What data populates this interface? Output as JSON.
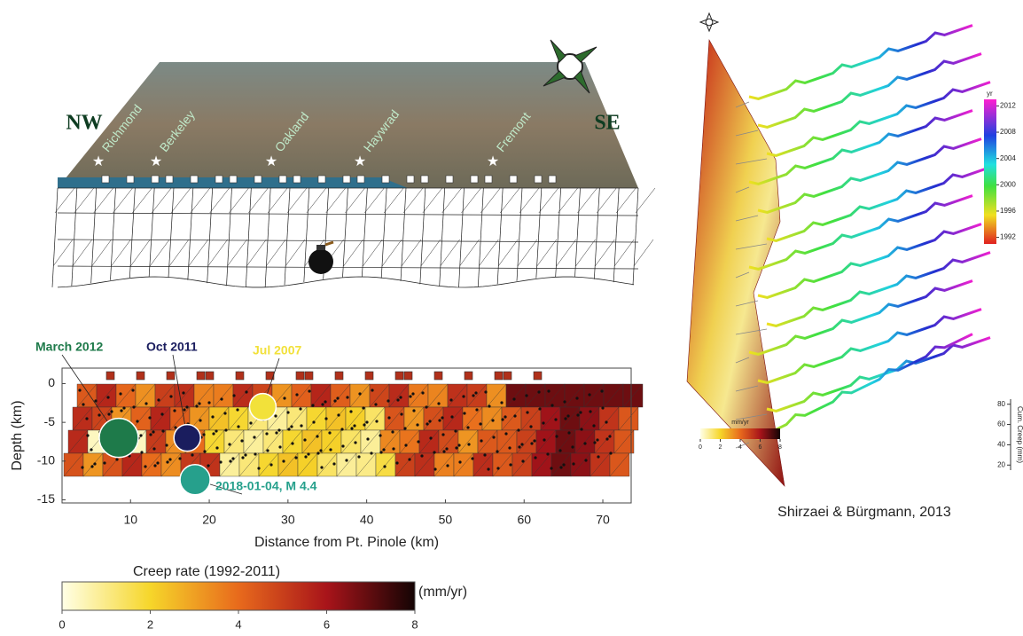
{
  "map_panel": {
    "region_labels": [
      "NW",
      "SE"
    ],
    "cities": [
      "Richmond",
      "Berkeley",
      "Oakland",
      "Haywrad",
      "Fremont"
    ]
  },
  "depth_chart": {
    "y_label": "Depth (km)",
    "x_label": "Distance from Pt. Pinole (km)",
    "xlim": [
      1.3,
      73.6
    ],
    "ylim": [
      -15.4,
      2
    ],
    "xticks": [
      10,
      20,
      30,
      40,
      50,
      60,
      70
    ],
    "yticks": [
      0,
      -5,
      -10,
      -15
    ],
    "events": [
      {
        "label": "March 2012",
        "x": 8.5,
        "y": -7,
        "color": "#1e7a4a"
      },
      {
        "label": "Oct 2011",
        "x": 17.2,
        "y": -7,
        "color": "#1a1d5e"
      },
      {
        "label": "Jul 2007",
        "x": 26.8,
        "y": -3,
        "color": "#f2e13a"
      },
      {
        "label": "2018-01-04, M 4.4",
        "x": 18.2,
        "y": -12.4,
        "color": "#26a08c"
      }
    ]
  },
  "colorbar": {
    "title": "Creep rate (1992-2011)",
    "unit": "(mm/yr)",
    "lim": [
      0,
      8
    ],
    "ticks": [
      0,
      2,
      4,
      6,
      8
    ]
  },
  "right_panel": {
    "credit": "Shirzaei & Bürgmann, 2013",
    "time_colorbar": {
      "title": "yr",
      "lim": [
        1991,
        2013
      ],
      "ticks": [
        1992,
        1996,
        2000,
        2004,
        2008,
        2012
      ]
    },
    "rate_colorbar": {
      "title": "mm/yr",
      "lim": [
        0,
        8
      ],
      "ticks": [
        0,
        2,
        4,
        6,
        8
      ]
    },
    "creep_axis": {
      "label": "Cum. Creep (mm)",
      "lim": [
        15,
        85
      ],
      "ticks": [
        20,
        40,
        60,
        80
      ]
    }
  }
}
